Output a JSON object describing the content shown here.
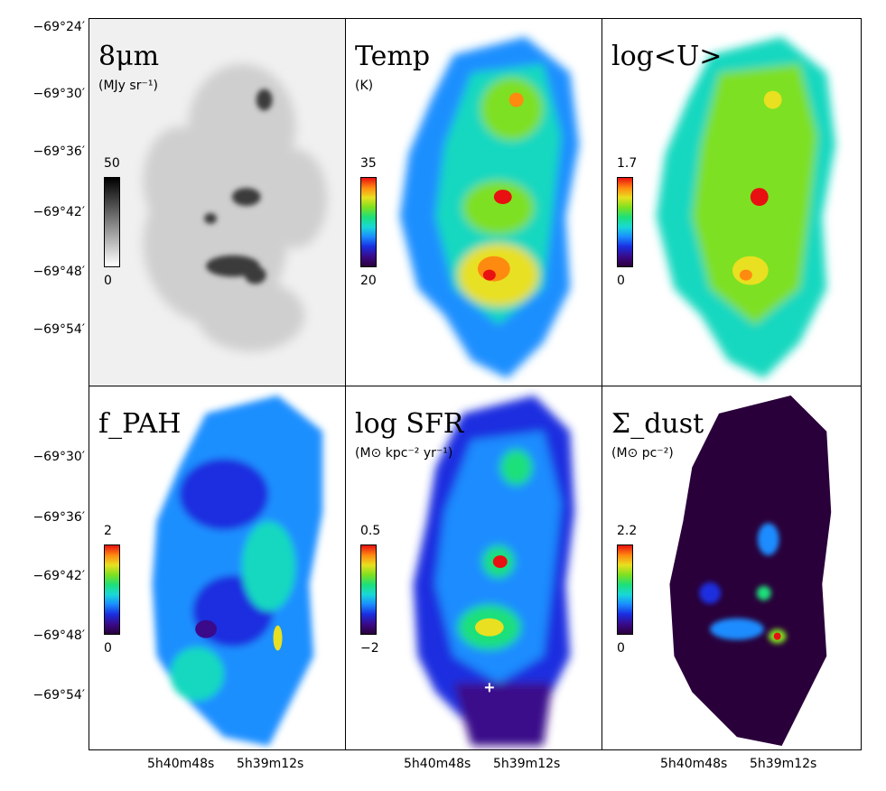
{
  "panels": [
    {
      "title": "8μm",
      "unit": "(MJy sr⁻¹)",
      "cb_max": "50",
      "cb_min": "0",
      "colormap": "gray"
    },
    {
      "title": "Temp",
      "unit": "(K)",
      "cb_max": "35",
      "cb_min": "20",
      "colormap": "rainbow"
    },
    {
      "title": "log<U>",
      "unit": "",
      "cb_max": "1.7",
      "cb_min": "0",
      "colormap": "rainbow"
    },
    {
      "title": "f_PAH",
      "unit": "",
      "cb_max": "2",
      "cb_min": "0",
      "colormap": "rainbow"
    },
    {
      "title": "log SFR",
      "unit": "(M⊙ kpc⁻² yr⁻¹)",
      "cb_max": "0.5",
      "cb_min": "−2",
      "colormap": "rainbow"
    },
    {
      "title": "Σ_dust",
      "unit": "(M⊙ pc⁻²)",
      "cb_max": "2.2",
      "cb_min": "0",
      "colormap": "rainbow"
    }
  ],
  "y_ticks": [
    "−69°24′",
    "−69°30′",
    "−69°36′",
    "−69°42′",
    "−69°48′",
    "−69°54′",
    "−69°30′",
    "−69°36′",
    "−69°42′",
    "−69°48′",
    "−69°54′"
  ],
  "x_ticks": [
    "5h40m48s",
    "5h39m12s"
  ],
  "colors": {
    "rainbow": [
      "#2a003a",
      "#3a0a8a",
      "#1a2ee0",
      "#1a8cff",
      "#19d8d8",
      "#1de07a",
      "#7ee020",
      "#e8e020",
      "#ff8a10",
      "#e81010"
    ]
  }
}
